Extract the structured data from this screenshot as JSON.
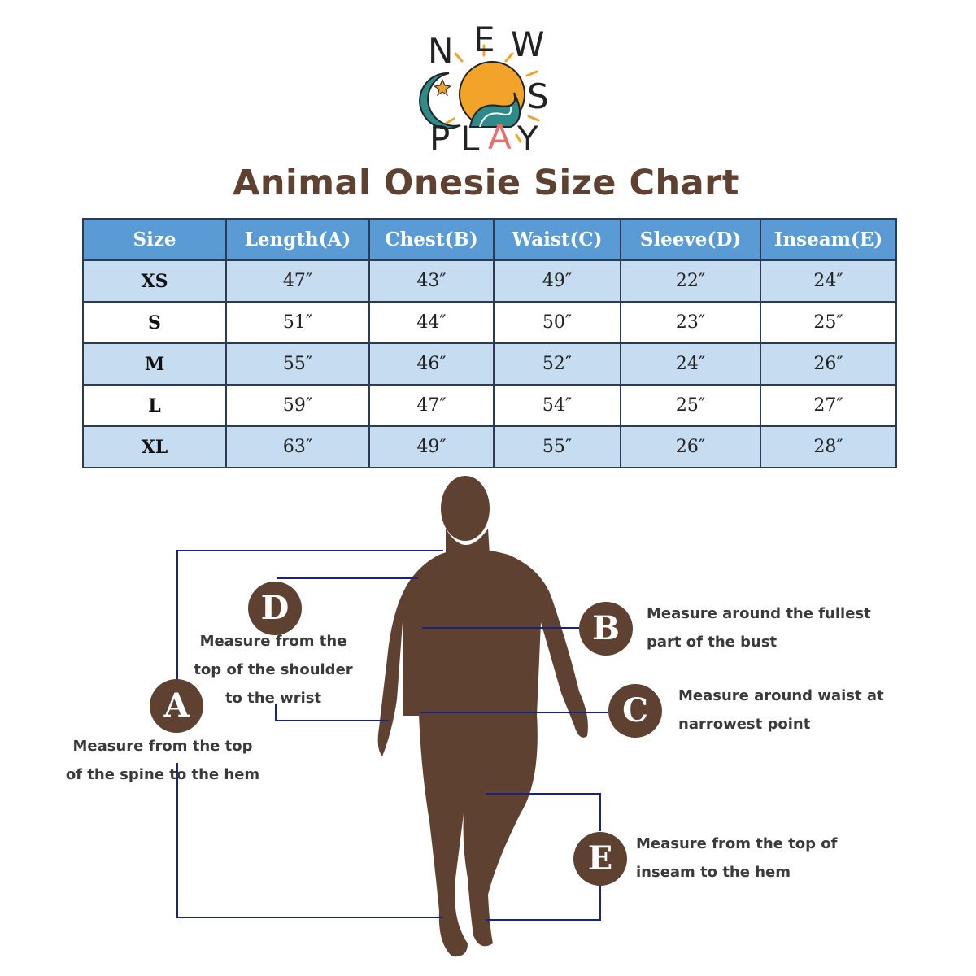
{
  "logo": {
    "letters_top": [
      "N",
      "E",
      "W"
    ],
    "letters_mid": [
      "C",
      "S"
    ],
    "letters_bottom": [
      "P",
      "L",
      "A",
      "Y"
    ],
    "colors": {
      "sun": "#f2a32a",
      "moon": "#2f8a8a",
      "wave": "#2f8a8a",
      "text": "#222222",
      "accent_a": "#ec6c6c"
    }
  },
  "title": "Animal Onesie Size Chart",
  "table": {
    "headers": [
      "Size",
      "Length(A)",
      "Chest(B)",
      "Waist(C)",
      "Sleeve(D)",
      "Inseam(E)"
    ],
    "rows": [
      [
        "XS",
        "47″",
        "43″",
        "49″",
        "22″",
        "24″"
      ],
      [
        "S",
        "51″",
        "44″",
        "50″",
        "23″",
        "25″"
      ],
      [
        "M",
        "55″",
        "46″",
        "52″",
        "24″",
        "26″"
      ],
      [
        "L",
        "59″",
        "47″",
        "54″",
        "25″",
        "27″"
      ],
      [
        "XL",
        "63″",
        "49″",
        "55″",
        "26″",
        "28″"
      ]
    ],
    "colors": {
      "header_bg": "#5b9bd5",
      "shade_bg": "#c6dcf0",
      "border": "#2b3a55"
    }
  },
  "diagram": {
    "silhouette_color": "#5e4130",
    "line_color": "#1a237e",
    "badges": {
      "a": "A",
      "b": "B",
      "c": "C",
      "d": "D",
      "e": "E"
    },
    "captions": {
      "a": [
        "Measure from the top",
        "of the spine to the hem"
      ],
      "b": [
        "Measure around the fullest",
        "part of the bust"
      ],
      "c": [
        "Measure around waist at",
        "narrowest point"
      ],
      "d": [
        "Measure from the",
        "top of the shoulder",
        "to the wrist"
      ],
      "e": [
        "Measure from the top of",
        "inseam to the hem"
      ]
    }
  }
}
